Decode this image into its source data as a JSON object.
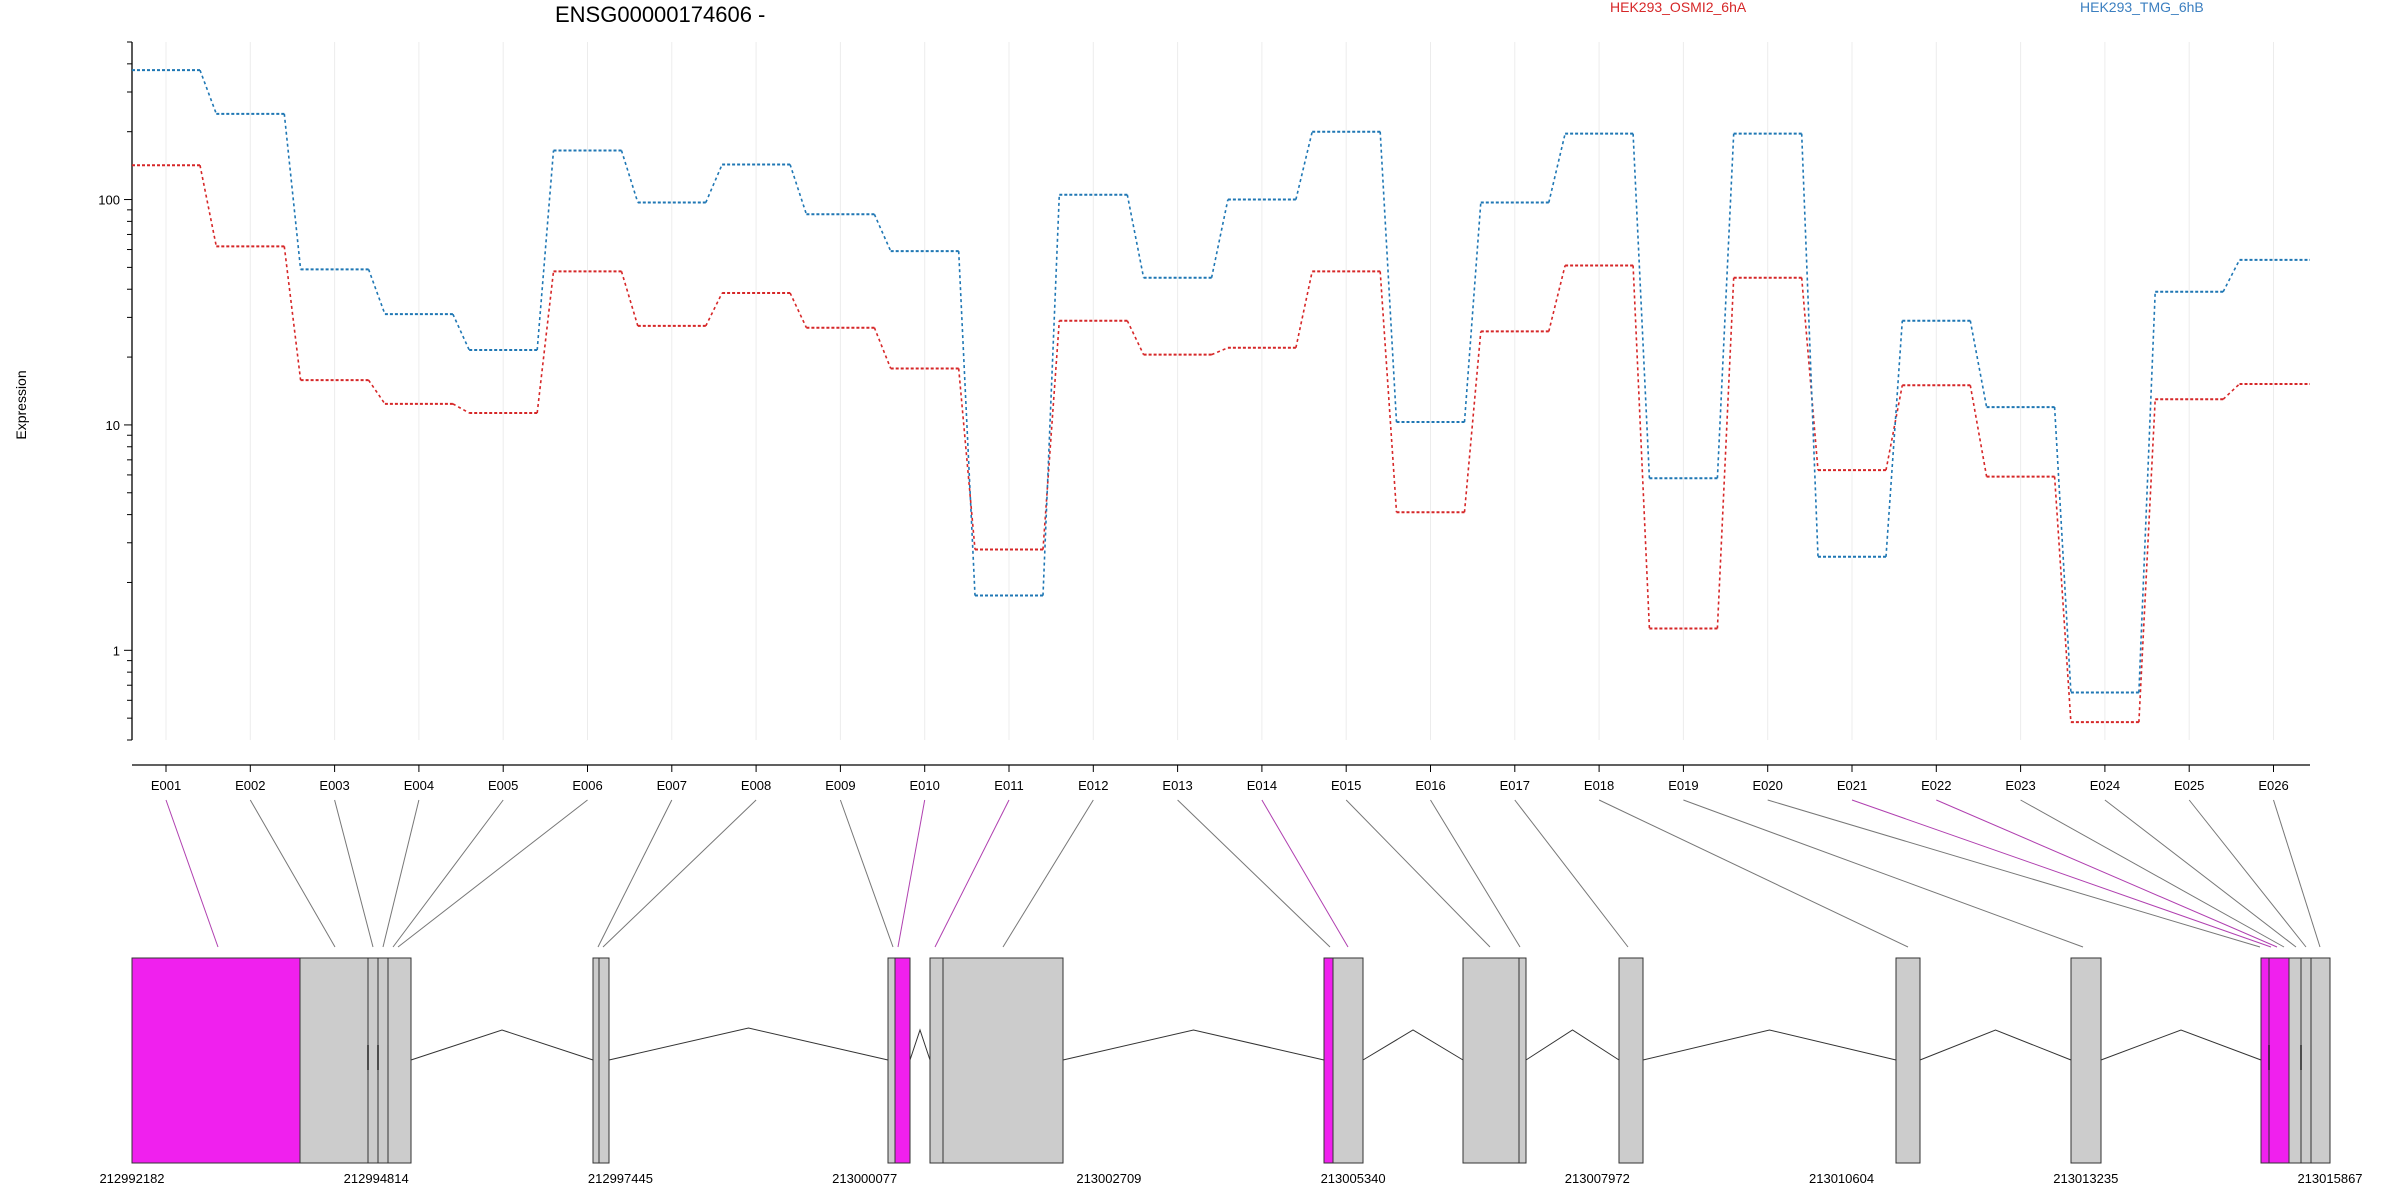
{
  "chart_data": {
    "type": "line",
    "title": "ENSG00000174606 -",
    "ylabel": "Expression",
    "y_scale": "log",
    "ylim": [
      0.4,
      500
    ],
    "y_ticks": [
      1,
      10,
      100
    ],
    "y_tick_labels": [
      "1",
      "10",
      "100"
    ],
    "grid": "vertical-light",
    "legend_position": "top",
    "categories": [
      "E001",
      "E002",
      "E003",
      "E004",
      "E005",
      "E006",
      "E007",
      "E008",
      "E009",
      "E010",
      "E011",
      "E012",
      "E013",
      "E014",
      "E015",
      "E016",
      "E017",
      "E018",
      "E019",
      "E020",
      "E021",
      "E022",
      "E023",
      "E024",
      "E025",
      "E026"
    ],
    "series": [
      {
        "name": "HEK293_OSMI2_6hA",
        "color": "#d62728",
        "values": [
          142,
          62,
          15.8,
          12.4,
          11.3,
          48,
          27.5,
          38.5,
          27,
          17.8,
          2.8,
          29,
          20.5,
          22,
          48,
          4.1,
          26,
          51,
          1.25,
          45,
          6.3,
          15,
          5.9,
          0.48,
          13,
          15.2
        ]
      },
      {
        "name": "HEK293_TMG_6hB",
        "color": "#1f77b4",
        "values": [
          375,
          240,
          49,
          31,
          21.5,
          165,
          97,
          143,
          86,
          59,
          1.75,
          105,
          45,
          100,
          200,
          10.3,
          97,
          196,
          5.8,
          196,
          2.6,
          29,
          12,
          0.65,
          39,
          54
        ]
      }
    ],
    "gene_model": {
      "coordinate_labels": [
        "212992182",
        "212994814",
        "212997445",
        "213000077",
        "213002709",
        "213005340",
        "213007972",
        "213010604",
        "213013235",
        "213015867"
      ],
      "highlight_color": "#f020ee",
      "exon_color": "#cccccc",
      "highlighted_exons": [
        "E001",
        "E010",
        "E011",
        "E014",
        "E021",
        "E022"
      ]
    }
  }
}
